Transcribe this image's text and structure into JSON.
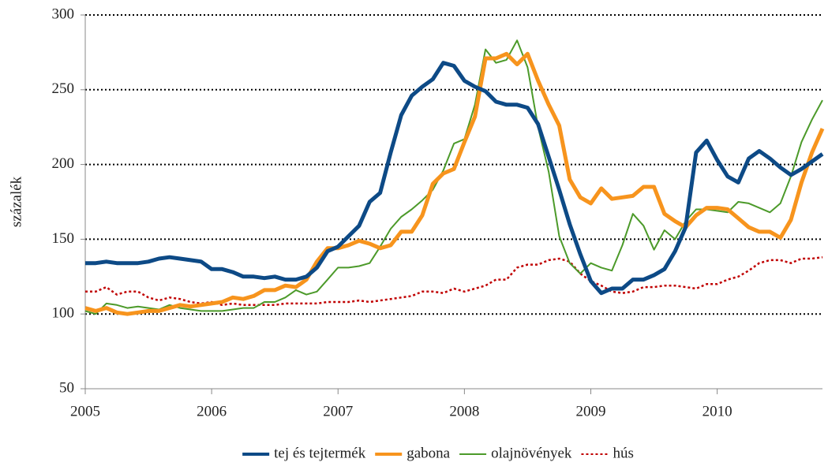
{
  "chart_data": {
    "type": "line",
    "y_label": "százalék",
    "x": [
      2005,
      2005.083,
      2005.167,
      2005.25,
      2005.333,
      2005.417,
      2005.5,
      2005.583,
      2005.667,
      2005.75,
      2005.833,
      2005.917,
      2006,
      2006.083,
      2006.167,
      2006.25,
      2006.333,
      2006.417,
      2006.5,
      2006.583,
      2006.667,
      2006.75,
      2006.833,
      2006.917,
      2007,
      2007.083,
      2007.167,
      2007.25,
      2007.333,
      2007.417,
      2007.5,
      2007.583,
      2007.667,
      2007.75,
      2007.833,
      2007.917,
      2008,
      2008.083,
      2008.167,
      2008.25,
      2008.333,
      2008.417,
      2008.5,
      2008.583,
      2008.667,
      2008.75,
      2008.833,
      2008.917,
      2009,
      2009.083,
      2009.167,
      2009.25,
      2009.333,
      2009.417,
      2009.5,
      2009.583,
      2009.667,
      2009.75,
      2009.833,
      2009.917,
      2010,
      2010.083,
      2010.167,
      2010.25,
      2010.333,
      2010.417,
      2010.5,
      2010.583,
      2010.667,
      2010.75,
      2010.833
    ],
    "series": [
      {
        "name": "tej és tejtermék",
        "color": "#0d4a86",
        "style": "solid",
        "width": 5,
        "values": [
          134,
          134,
          135,
          134,
          134,
          134,
          135,
          137,
          138,
          137,
          136,
          135,
          130,
          130,
          128,
          125,
          125,
          124,
          125,
          123,
          123,
          125,
          131,
          142,
          145,
          152,
          159,
          175,
          181,
          208,
          233,
          246,
          252,
          257,
          268,
          266,
          256,
          252,
          249,
          242,
          240,
          240,
          238,
          227,
          205,
          183,
          160,
          140,
          122,
          114,
          117,
          117,
          123,
          123,
          126,
          130,
          142,
          158,
          208,
          216,
          203,
          192,
          188,
          204,
          209,
          204,
          198,
          193,
          197,
          202,
          207
        ]
      },
      {
        "name": "gabona",
        "color": "#f7941d",
        "style": "solid",
        "width": 5,
        "values": [
          104,
          102,
          104,
          101,
          100,
          101,
          102,
          102,
          104,
          106,
          105,
          106,
          107,
          108,
          111,
          110,
          112,
          116,
          116,
          119,
          118,
          123,
          135,
          144,
          144,
          146,
          149,
          147,
          144,
          146,
          155,
          155,
          166,
          187,
          194,
          197,
          215,
          232,
          271,
          271,
          274,
          267,
          274,
          256,
          240,
          226,
          190,
          178,
          174,
          184,
          177,
          178,
          179,
          185,
          185,
          167,
          162,
          158,
          166,
          171,
          171,
          170,
          164,
          158,
          155,
          155,
          151,
          163,
          188,
          208,
          224
        ]
      },
      {
        "name": "olajnövények",
        "color": "#4c9a2a",
        "style": "solid",
        "width": 2,
        "values": [
          102,
          100,
          107,
          106,
          104,
          105,
          104,
          103,
          106,
          104,
          103,
          102,
          102,
          102,
          103,
          104,
          104,
          108,
          108,
          111,
          116,
          113,
          115,
          123,
          131,
          131,
          132,
          134,
          145,
          157,
          165,
          170,
          176,
          183,
          196,
          214,
          217,
          240,
          277,
          268,
          270,
          283,
          265,
          225,
          195,
          152,
          134,
          127,
          134,
          131,
          129,
          146,
          167,
          159,
          143,
          156,
          150,
          162,
          170,
          170,
          169,
          168,
          175,
          174,
          171,
          168,
          174,
          192,
          215,
          230,
          243
        ]
      },
      {
        "name": "hús",
        "color": "#c00000",
        "style": "dotted",
        "width": 2.5,
        "values": [
          115,
          115,
          118,
          113,
          115,
          115,
          111,
          109,
          111,
          110,
          108,
          107,
          108,
          106,
          107,
          106,
          106,
          106,
          106,
          107,
          107,
          107,
          107,
          108,
          108,
          108,
          109,
          108,
          109,
          110,
          111,
          112,
          115,
          115,
          114,
          117,
          115,
          117,
          119,
          123,
          123,
          131,
          133,
          133,
          136,
          137,
          135,
          127,
          122,
          119,
          115,
          114,
          115,
          118,
          118,
          119,
          119,
          118,
          117,
          120,
          120,
          123,
          125,
          129,
          134,
          136,
          136,
          134,
          137,
          137,
          138
        ]
      }
    ],
    "xlim": [
      2005,
      2010.833
    ],
    "xticks": [
      2005,
      2006,
      2007,
      2008,
      2009,
      2010
    ],
    "ylim": [
      50,
      300
    ],
    "yticks": [
      50,
      100,
      150,
      200,
      250,
      300
    ],
    "grid": true,
    "legend": "bottom"
  }
}
